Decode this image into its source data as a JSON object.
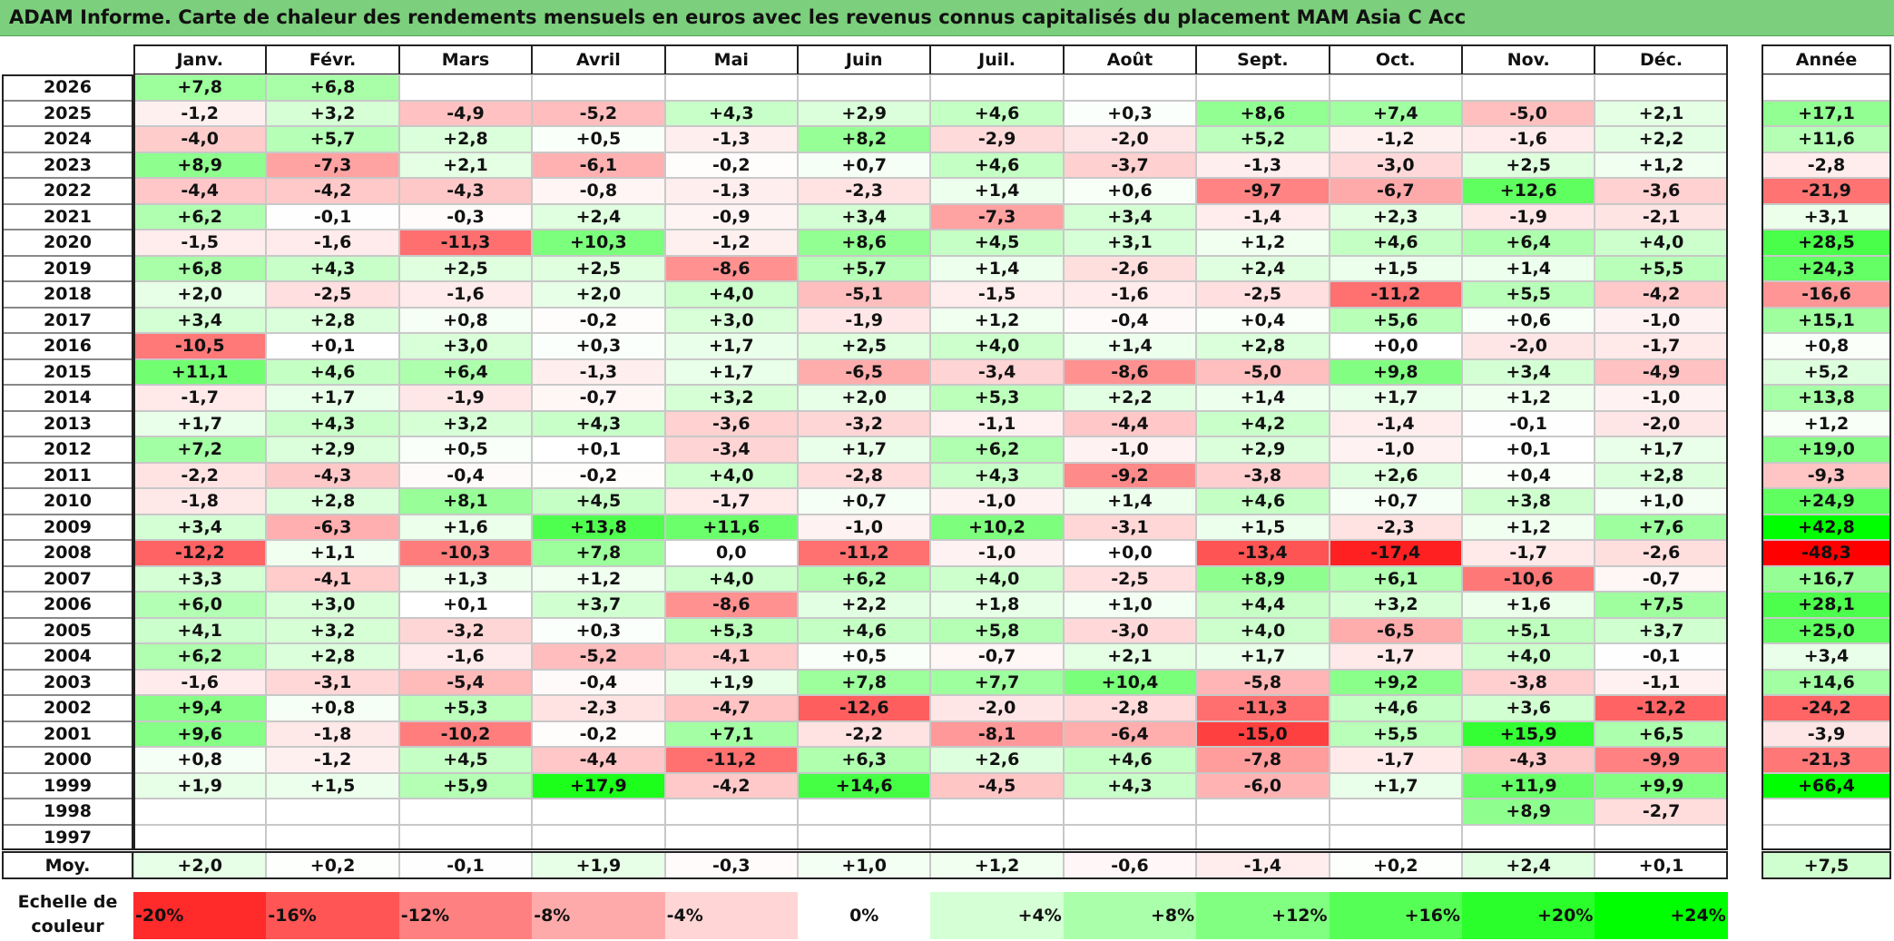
{
  "title": "ADAM Informe. Carte de chaleur des rendements mensuels en euros avec les revenus connus capitalisés du placement MAM Asia C Acc",
  "annual_header": "Année",
  "average_label": "Moy.",
  "scale_label": "Echelle de couleur",
  "chart_data": {
    "type": "heatmap",
    "title": "ADAM Informe. Carte de chaleur des rendements mensuels en euros avec les revenus connus capitalisés du placement MAM Asia C Acc",
    "columns": [
      "Janv.",
      "Févr.",
      "Mars",
      "Avril",
      "Mai",
      "Juin",
      "Juil.",
      "Août",
      "Sept.",
      "Oct.",
      "Nov.",
      "Déc."
    ],
    "rows": [
      {
        "year": "2026",
        "values": [
          "+7,8",
          "+6,8",
          "",
          "",
          "",
          "",
          "",
          "",
          "",
          "",
          "",
          ""
        ],
        "annual": ""
      },
      {
        "year": "2025",
        "values": [
          "-1,2",
          "+3,2",
          "-4,9",
          "-5,2",
          "+4,3",
          "+2,9",
          "+4,6",
          "+0,3",
          "+8,6",
          "+7,4",
          "-5,0",
          "+2,1"
        ],
        "annual": "+17,1"
      },
      {
        "year": "2024",
        "values": [
          "-4,0",
          "+5,7",
          "+2,8",
          "+0,5",
          "-1,3",
          "+8,2",
          "-2,9",
          "-2,0",
          "+5,2",
          "-1,2",
          "-1,6",
          "+2,2"
        ],
        "annual": "+11,6"
      },
      {
        "year": "2023",
        "values": [
          "+8,9",
          "-7,3",
          "+2,1",
          "-6,1",
          "-0,2",
          "+0,7",
          "+4,6",
          "-3,7",
          "-1,3",
          "-3,0",
          "+2,5",
          "+1,2"
        ],
        "annual": "-2,8"
      },
      {
        "year": "2022",
        "values": [
          "-4,4",
          "-4,2",
          "-4,3",
          "-0,8",
          "-1,3",
          "-2,3",
          "+1,4",
          "+0,6",
          "-9,7",
          "-6,7",
          "+12,6",
          "-3,6"
        ],
        "annual": "-21,9"
      },
      {
        "year": "2021",
        "values": [
          "+6,2",
          "-0,1",
          "-0,3",
          "+2,4",
          "-0,9",
          "+3,4",
          "-7,3",
          "+3,4",
          "-1,4",
          "+2,3",
          "-1,9",
          "-2,1"
        ],
        "annual": "+3,1"
      },
      {
        "year": "2020",
        "values": [
          "-1,5",
          "-1,6",
          "-11,3",
          "+10,3",
          "-1,2",
          "+8,6",
          "+4,5",
          "+3,1",
          "+1,2",
          "+4,6",
          "+6,4",
          "+4,0"
        ],
        "annual": "+28,5"
      },
      {
        "year": "2019",
        "values": [
          "+6,8",
          "+4,3",
          "+2,5",
          "+2,5",
          "-8,6",
          "+5,7",
          "+1,4",
          "-2,6",
          "+2,4",
          "+1,5",
          "+1,4",
          "+5,5"
        ],
        "annual": "+24,3"
      },
      {
        "year": "2018",
        "values": [
          "+2,0",
          "-2,5",
          "-1,6",
          "+2,0",
          "+4,0",
          "-5,1",
          "-1,5",
          "-1,6",
          "-2,5",
          "-11,2",
          "+5,5",
          "-4,2"
        ],
        "annual": "-16,6"
      },
      {
        "year": "2017",
        "values": [
          "+3,4",
          "+2,8",
          "+0,8",
          "-0,2",
          "+3,0",
          "-1,9",
          "+1,2",
          "-0,4",
          "+0,4",
          "+5,6",
          "+0,6",
          "-1,0"
        ],
        "annual": "+15,1"
      },
      {
        "year": "2016",
        "values": [
          "-10,5",
          "+0,1",
          "+3,0",
          "+0,3",
          "+1,7",
          "+2,5",
          "+4,0",
          "+1,4",
          "+2,8",
          "+0,0",
          "-2,0",
          "-1,7"
        ],
        "annual": "+0,8"
      },
      {
        "year": "2015",
        "values": [
          "+11,1",
          "+4,6",
          "+6,4",
          "-1,3",
          "+1,7",
          "-6,5",
          "-3,4",
          "-8,6",
          "-5,0",
          "+9,8",
          "+3,4",
          "-4,9"
        ],
        "annual": "+5,2"
      },
      {
        "year": "2014",
        "values": [
          "-1,7",
          "+1,7",
          "-1,9",
          "-0,7",
          "+3,2",
          "+2,0",
          "+5,3",
          "+2,2",
          "+1,4",
          "+1,7",
          "+1,2",
          "-1,0"
        ],
        "annual": "+13,8"
      },
      {
        "year": "2013",
        "values": [
          "+1,7",
          "+4,3",
          "+3,2",
          "+4,3",
          "-3,6",
          "-3,2",
          "-1,1",
          "-4,4",
          "+4,2",
          "-1,4",
          "-0,1",
          "-2,0"
        ],
        "annual": "+1,2"
      },
      {
        "year": "2012",
        "values": [
          "+7,2",
          "+2,9",
          "+0,5",
          "+0,1",
          "-3,4",
          "+1,7",
          "+6,2",
          "-1,0",
          "+2,9",
          "-1,0",
          "+0,1",
          "+1,7"
        ],
        "annual": "+19,0"
      },
      {
        "year": "2011",
        "values": [
          "-2,2",
          "-4,3",
          "-0,4",
          "-0,2",
          "+4,0",
          "-2,8",
          "+4,3",
          "-9,2",
          "-3,8",
          "+2,6",
          "+0,4",
          "+2,8"
        ],
        "annual": "-9,3"
      },
      {
        "year": "2010",
        "values": [
          "-1,8",
          "+2,8",
          "+8,1",
          "+4,5",
          "-1,7",
          "+0,7",
          "-1,0",
          "+1,4",
          "+4,6",
          "+0,7",
          "+3,8",
          "+1,0"
        ],
        "annual": "+24,9"
      },
      {
        "year": "2009",
        "values": [
          "+3,4",
          "-6,3",
          "+1,6",
          "+13,8",
          "+11,6",
          "-1,0",
          "+10,2",
          "-3,1",
          "+1,5",
          "-2,3",
          "+1,2",
          "+7,6"
        ],
        "annual": "+42,8"
      },
      {
        "year": "2008",
        "values": [
          "-12,2",
          "+1,1",
          "-10,3",
          "+7,8",
          "0,0",
          "-11,2",
          "-1,0",
          "+0,0",
          "-13,4",
          "-17,4",
          "-1,7",
          "-2,6"
        ],
        "annual": "-48,3"
      },
      {
        "year": "2007",
        "values": [
          "+3,3",
          "-4,1",
          "+1,3",
          "+1,2",
          "+4,0",
          "+6,2",
          "+4,0",
          "-2,5",
          "+8,9",
          "+6,1",
          "-10,6",
          "-0,7"
        ],
        "annual": "+16,7"
      },
      {
        "year": "2006",
        "values": [
          "+6,0",
          "+3,0",
          "+0,1",
          "+3,7",
          "-8,6",
          "+2,2",
          "+1,8",
          "+1,0",
          "+4,4",
          "+3,2",
          "+1,6",
          "+7,5"
        ],
        "annual": "+28,1"
      },
      {
        "year": "2005",
        "values": [
          "+4,1",
          "+3,2",
          "-3,2",
          "+0,3",
          "+5,3",
          "+4,6",
          "+5,8",
          "-3,0",
          "+4,0",
          "-6,5",
          "+5,1",
          "+3,7"
        ],
        "annual": "+25,0"
      },
      {
        "year": "2004",
        "values": [
          "+6,2",
          "+2,8",
          "-1,6",
          "-5,2",
          "-4,1",
          "+0,5",
          "-0,7",
          "+2,1",
          "+1,7",
          "-1,7",
          "+4,0",
          "-0,1"
        ],
        "annual": "+3,4"
      },
      {
        "year": "2003",
        "values": [
          "-1,6",
          "-3,1",
          "-5,4",
          "-0,4",
          "+1,9",
          "+7,8",
          "+7,7",
          "+10,4",
          "-5,8",
          "+9,2",
          "-3,8",
          "-1,1"
        ],
        "annual": "+14,6"
      },
      {
        "year": "2002",
        "values": [
          "+9,4",
          "+0,8",
          "+5,3",
          "-2,3",
          "-4,7",
          "-12,6",
          "-2,0",
          "-2,8",
          "-11,3",
          "+4,6",
          "+3,6",
          "-12,2"
        ],
        "annual": "-24,2"
      },
      {
        "year": "2001",
        "values": [
          "+9,6",
          "-1,8",
          "-10,2",
          "-0,2",
          "+7,1",
          "-2,2",
          "-8,1",
          "-6,4",
          "-15,0",
          "+5,5",
          "+15,9",
          "+6,5"
        ],
        "annual": "-3,9"
      },
      {
        "year": "2000",
        "values": [
          "+0,8",
          "-1,2",
          "+4,5",
          "-4,4",
          "-11,2",
          "+6,3",
          "+2,6",
          "+4,6",
          "-7,8",
          "-1,7",
          "-4,3",
          "-9,9"
        ],
        "annual": "-21,3"
      },
      {
        "year": "1999",
        "values": [
          "+1,9",
          "+1,5",
          "+5,9",
          "+17,9",
          "-4,2",
          "+14,6",
          "-4,5",
          "+4,3",
          "-6,0",
          "+1,7",
          "+11,9",
          "+9,9"
        ],
        "annual": "+66,4"
      },
      {
        "year": "1998",
        "values": [
          "",
          "",
          "",
          "",
          "",
          "",
          "",
          "",
          "",
          "",
          "+8,9",
          "-2,7"
        ],
        "annual": ""
      },
      {
        "year": "1997",
        "values": [
          "",
          "",
          "",
          "",
          "",
          "",
          "",
          "",
          "",
          "",
          "",
          ""
        ],
        "annual": ""
      }
    ],
    "averages": {
      "values": [
        "+2,0",
        "+0,2",
        "-0,1",
        "+1,9",
        "-0,3",
        "+1,0",
        "+1,2",
        "-0,6",
        "-1,4",
        "+0,2",
        "+2,4",
        "+0,1"
      ],
      "annual": "+7,5"
    },
    "scale": [
      "-20%",
      "-16%",
      "-12%",
      "-8%",
      "-4%",
      "0%",
      "+4%",
      "+8%",
      "+12%",
      "+16%",
      "+20%",
      "+24%"
    ],
    "colors": {
      "negative_max": "#ff0000",
      "neutral": "#ffffff",
      "positive_max": "#00ff00"
    }
  }
}
